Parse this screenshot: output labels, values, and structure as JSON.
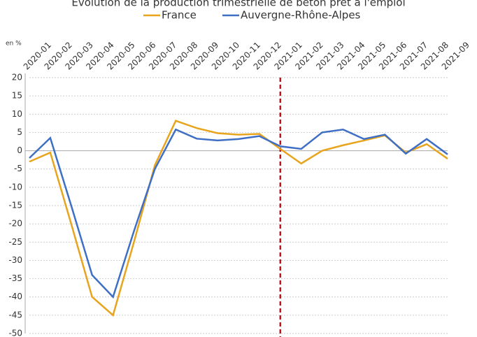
{
  "chart_data": {
    "type": "line",
    "title": "Évolution de la production trimestrielle de béton prêt à l'emploi",
    "y_label": "en %",
    "categories": [
      "2020-01",
      "2020-02",
      "2020-03",
      "2020-04",
      "2020-05",
      "2020-06",
      "2020-07",
      "2020-08",
      "2020-09",
      "2020-10",
      "2020-11",
      "2020-12",
      "2021-01",
      "2021-02",
      "2021-03",
      "2021-04",
      "2021-05",
      "2021-06",
      "2021-07",
      "2021-08",
      "2021-09"
    ],
    "series": [
      {
        "name": "France",
        "color": "#e8a41c",
        "values": [
          -3,
          -0.5,
          -20,
          -40,
          -45,
          -25,
          -4,
          8.2,
          6.2,
          4.8,
          4.4,
          4.6,
          0.5,
          -3.5,
          0,
          1.5,
          2.8,
          4.2,
          -0.5,
          1.8,
          -2.2
        ]
      },
      {
        "name": "Auvergne-Rhône-Alpes",
        "color": "#3e6fc4",
        "values": [
          -2,
          3.5,
          -15,
          -34,
          -40,
          -22,
          -5,
          5.8,
          3.3,
          2.8,
          3.2,
          4,
          1.2,
          0.5,
          5,
          5.8,
          3.2,
          4.4,
          -0.8,
          3.2,
          -1
        ]
      }
    ],
    "ylim": [
      -50,
      20
    ],
    "yticks": [
      20,
      15,
      10,
      5,
      0,
      -5,
      -10,
      -15,
      -20,
      -25,
      -30,
      -35,
      -40,
      -45,
      -50
    ],
    "grid": true,
    "legend": "top"
  }
}
